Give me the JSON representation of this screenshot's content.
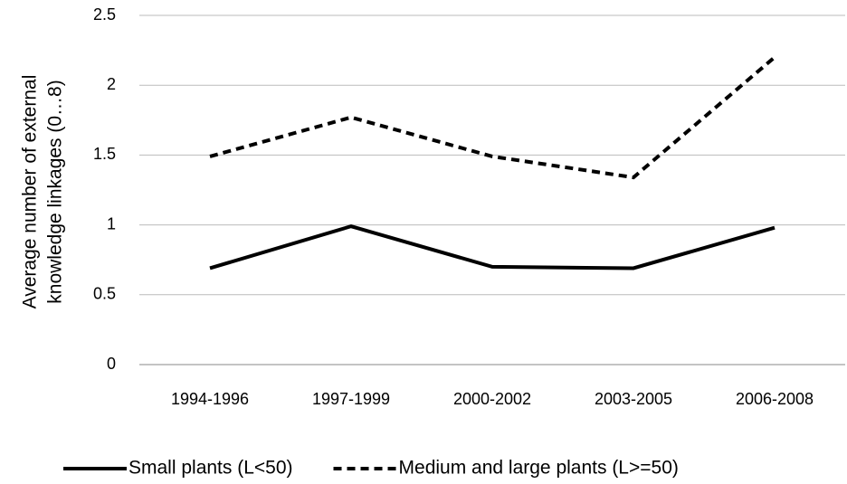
{
  "chart_data": {
    "type": "line",
    "ylabel": [
      "Average number  of external",
      "knowledge linkages  (0…8)"
    ],
    "categories": [
      "1994-1996",
      "1997-1999",
      "2000-2002",
      "2003-2005",
      "2006-2008"
    ],
    "series": [
      {
        "name": "Small plants (L<50)",
        "color": "#000000",
        "dash": "solid",
        "values": [
          0.69,
          0.99,
          0.7,
          0.69,
          0.98
        ]
      },
      {
        "name": "Medium and large plants (L>=50)",
        "color": "#000000",
        "dash": "dashed",
        "values": [
          1.49,
          1.77,
          1.49,
          1.34,
          2.2
        ]
      }
    ],
    "ylim": [
      0,
      2.5
    ],
    "yticks": [
      0,
      0.5,
      1,
      1.5,
      2,
      2.5
    ],
    "grid": true,
    "legend": "bottom"
  }
}
